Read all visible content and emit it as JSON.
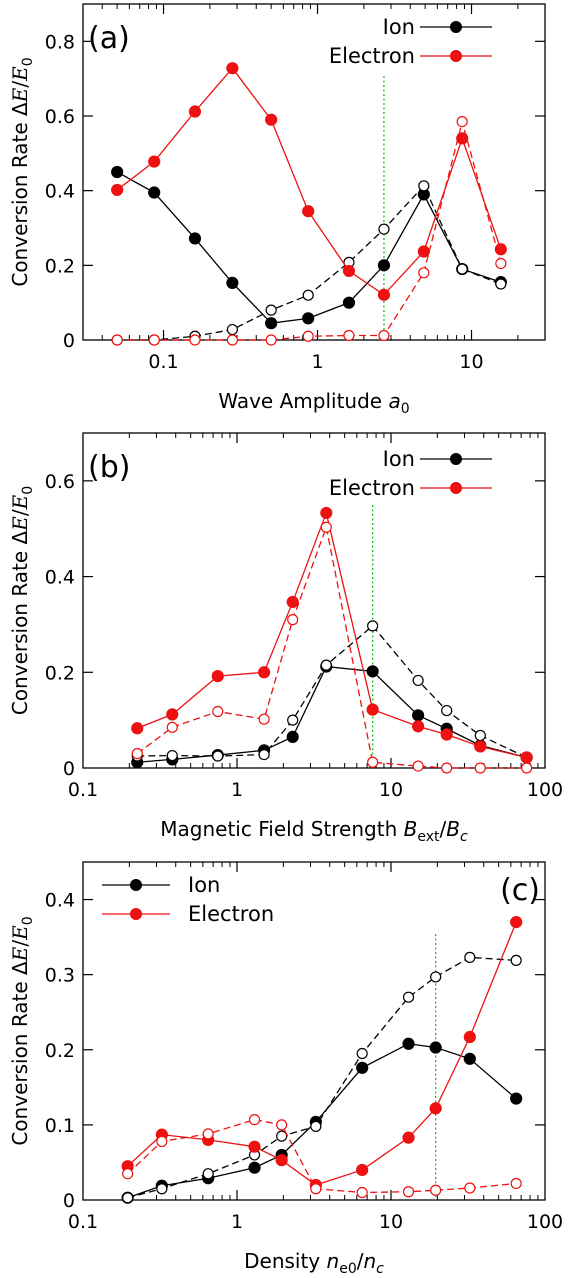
{
  "chart_data": [
    {
      "type": "line",
      "panel": "(a)",
      "xlabel": "Wave Amplitude a0",
      "xlabel_parts": [
        "Wave Amplitude ",
        "a",
        "0",
        ""
      ],
      "ylabel": "Conversion Rate ΔE/E0",
      "xscale": "log",
      "xlim": [
        0.03,
        30
      ],
      "ylim": [
        0,
        0.9
      ],
      "xticks": [
        0.1,
        1,
        10
      ],
      "xtick_labels": [
        "0.1",
        "1",
        "10"
      ],
      "yticks": [
        0,
        0.2,
        0.4,
        0.6,
        0.8
      ],
      "ytick_labels": [
        "0",
        "0.2",
        "0.4",
        "0.6",
        "0.8"
      ],
      "vline": 2.7,
      "legend": {
        "position": "top-right",
        "entries": [
          "Ion",
          "Electron"
        ]
      },
      "series": [
        {
          "name": "Ion",
          "style": "solid",
          "color": "#000000",
          "x": [
            0.05,
            0.087,
            0.16,
            0.28,
            0.5,
            0.87,
            1.6,
            2.7,
            4.9,
            8.7,
            15.5
          ],
          "y": [
            0.45,
            0.395,
            0.272,
            0.153,
            0.045,
            0.058,
            0.1,
            0.2,
            0.39,
            0.19,
            0.155
          ]
        },
        {
          "name": "Ion",
          "style": "dashed",
          "color": "#000000",
          "x": [
            0.05,
            0.087,
            0.16,
            0.28,
            0.5,
            0.87,
            1.6,
            2.7,
            4.9,
            8.7,
            15.5
          ],
          "y": [
            0.0,
            0.0,
            0.01,
            0.028,
            0.08,
            0.12,
            0.208,
            0.297,
            0.413,
            0.19,
            0.15
          ]
        },
        {
          "name": "Electron",
          "style": "solid",
          "color": "#ee1111",
          "x": [
            0.05,
            0.087,
            0.16,
            0.28,
            0.5,
            0.87,
            1.6,
            2.7,
            4.9,
            8.7,
            15.5
          ],
          "y": [
            0.402,
            0.478,
            0.612,
            0.728,
            0.59,
            0.345,
            0.185,
            0.121,
            0.237,
            0.54,
            0.243
          ]
        },
        {
          "name": "Electron",
          "style": "dashed",
          "color": "#ee1111",
          "x": [
            0.05,
            0.087,
            0.16,
            0.28,
            0.5,
            0.87,
            1.6,
            2.7,
            4.9,
            8.7,
            15.5
          ],
          "y": [
            0.0,
            0.0,
            0.0,
            0.0,
            0.0,
            0.01,
            0.012,
            0.012,
            0.18,
            0.585,
            0.205
          ]
        }
      ]
    },
    {
      "type": "line",
      "panel": "(b)",
      "xlabel": "Magnetic Field Strength Bext/Bc",
      "xlabel_parts": [
        "Magnetic Field Strength ",
        "B",
        "ext",
        "/Bc"
      ],
      "ylabel": "Conversion Rate ΔE/E0",
      "xscale": "log",
      "xlim": [
        0.1,
        100
      ],
      "ylim": [
        0,
        0.7
      ],
      "xticks": [
        0.1,
        1,
        10,
        100
      ],
      "xtick_labels": [
        "0.1",
        "1",
        "10",
        "100"
      ],
      "yticks": [
        0,
        0.2,
        0.4,
        0.6
      ],
      "ytick_labels": [
        "0",
        "0.2",
        "0.4",
        "0.6"
      ],
      "vline": 7.6,
      "legend": {
        "position": "top-right",
        "entries": [
          "Ion",
          "Electron"
        ]
      },
      "series": [
        {
          "name": "Ion",
          "style": "solid",
          "color": "#000000",
          "x": [
            0.225,
            0.38,
            0.75,
            1.5,
            2.3,
            3.8,
            7.6,
            15,
            23,
            38,
            76
          ],
          "y": [
            0.012,
            0.018,
            0.027,
            0.037,
            0.065,
            0.212,
            0.202,
            0.11,
            0.082,
            0.047,
            0.022
          ]
        },
        {
          "name": "Ion",
          "style": "dashed",
          "color": "#000000",
          "x": [
            0.225,
            0.38,
            0.75,
            1.5,
            2.3,
            3.8,
            7.6,
            15,
            23,
            38,
            76
          ],
          "y": [
            0.025,
            0.026,
            0.025,
            0.028,
            0.1,
            0.215,
            0.297,
            0.183,
            0.12,
            0.068,
            0.022
          ]
        },
        {
          "name": "Electron",
          "style": "solid",
          "color": "#ee1111",
          "x": [
            0.225,
            0.38,
            0.75,
            1.5,
            2.3,
            3.8,
            7.6,
            15,
            23,
            38,
            76
          ],
          "y": [
            0.083,
            0.112,
            0.192,
            0.2,
            0.347,
            0.533,
            0.122,
            0.087,
            0.07,
            0.045,
            0.022
          ]
        },
        {
          "name": "Electron",
          "style": "dashed",
          "color": "#ee1111",
          "x": [
            0.225,
            0.38,
            0.75,
            1.5,
            2.3,
            3.8,
            7.6,
            15,
            23,
            38,
            76
          ],
          "y": [
            0.03,
            0.085,
            0.118,
            0.102,
            0.31,
            0.503,
            0.012,
            0.004,
            0.0,
            0.0,
            0.0
          ]
        }
      ]
    },
    {
      "type": "line",
      "panel": "(c)",
      "xlabel": "Density ne0/nc",
      "xlabel_parts": [
        "Density ",
        "n",
        "e0",
        "/nc"
      ],
      "ylabel": "Conversion Rate ΔE/E0",
      "xscale": "log",
      "xlim": [
        0.1,
        100
      ],
      "ylim": [
        0,
        0.45
      ],
      "xticks": [
        0.1,
        1,
        10,
        100
      ],
      "xtick_labels": [
        "0.1",
        "1",
        "10",
        "100"
      ],
      "yticks": [
        0,
        0.1,
        0.2,
        0.3,
        0.4
      ],
      "ytick_labels": [
        "0",
        "0.1",
        "0.2",
        "0.3",
        "0.4"
      ],
      "vline": 19.5,
      "legend": {
        "position": "top-left",
        "entries": [
          "Ion",
          "Electron"
        ]
      },
      "series": [
        {
          "name": "Ion",
          "style": "solid",
          "color": "#000000",
          "x": [
            0.195,
            0.325,
            0.65,
            1.3,
            1.95,
            3.25,
            6.5,
            13,
            19.5,
            32.5,
            65
          ],
          "y": [
            0.003,
            0.019,
            0.029,
            0.043,
            0.06,
            0.104,
            0.176,
            0.208,
            0.203,
            0.188,
            0.135
          ]
        },
        {
          "name": "Ion",
          "style": "dashed",
          "color": "#000000",
          "x": [
            0.195,
            0.325,
            0.65,
            1.3,
            1.95,
            3.25,
            6.5,
            13,
            19.5,
            32.5,
            65
          ],
          "y": [
            0.003,
            0.015,
            0.035,
            0.06,
            0.085,
            0.098,
            0.195,
            0.27,
            0.297,
            0.323,
            0.319
          ]
        },
        {
          "name": "Electron",
          "style": "solid",
          "color": "#ee1111",
          "x": [
            0.195,
            0.325,
            0.65,
            1.3,
            1.95,
            3.25,
            6.5,
            13,
            19.5,
            32.5,
            65
          ],
          "y": [
            0.045,
            0.087,
            0.08,
            0.071,
            0.053,
            0.02,
            0.04,
            0.083,
            0.122,
            0.217,
            0.37
          ]
        },
        {
          "name": "Electron",
          "style": "dashed",
          "color": "#ee1111",
          "x": [
            0.195,
            0.325,
            0.65,
            1.3,
            1.95,
            3.25,
            6.5,
            13,
            19.5,
            32.5,
            65
          ],
          "y": [
            0.035,
            0.078,
            0.088,
            0.107,
            0.1,
            0.015,
            0.01,
            0.011,
            0.013,
            0.016,
            0.022
          ]
        }
      ]
    }
  ]
}
